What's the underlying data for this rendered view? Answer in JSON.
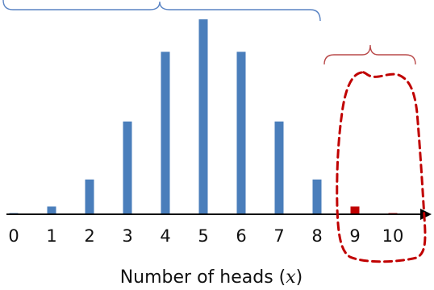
{
  "chart_data": {
    "type": "bar",
    "categories": [
      "0",
      "1",
      "2",
      "3",
      "4",
      "5",
      "6",
      "7",
      "8",
      "9",
      "10"
    ],
    "x": [
      0,
      1,
      2,
      3,
      4,
      5,
      6,
      7,
      8,
      9,
      10
    ],
    "values": [
      1,
      10,
      45,
      120,
      210,
      252,
      210,
      120,
      45,
      10,
      1
    ],
    "xlabel_prefix": "Number of heads (",
    "xlabel_var": "x",
    "xlabel_suffix": ")",
    "ylim": [
      0,
      252
    ],
    "grid": false,
    "highlight_from": 9,
    "colors": {
      "main": "#4a7ebb",
      "highlight": "#c00000",
      "axis": "#000000",
      "bracket_left": "#5a84c4",
      "bracket_right": "#b94a4a",
      "dashed_outline": "#c00000"
    }
  }
}
